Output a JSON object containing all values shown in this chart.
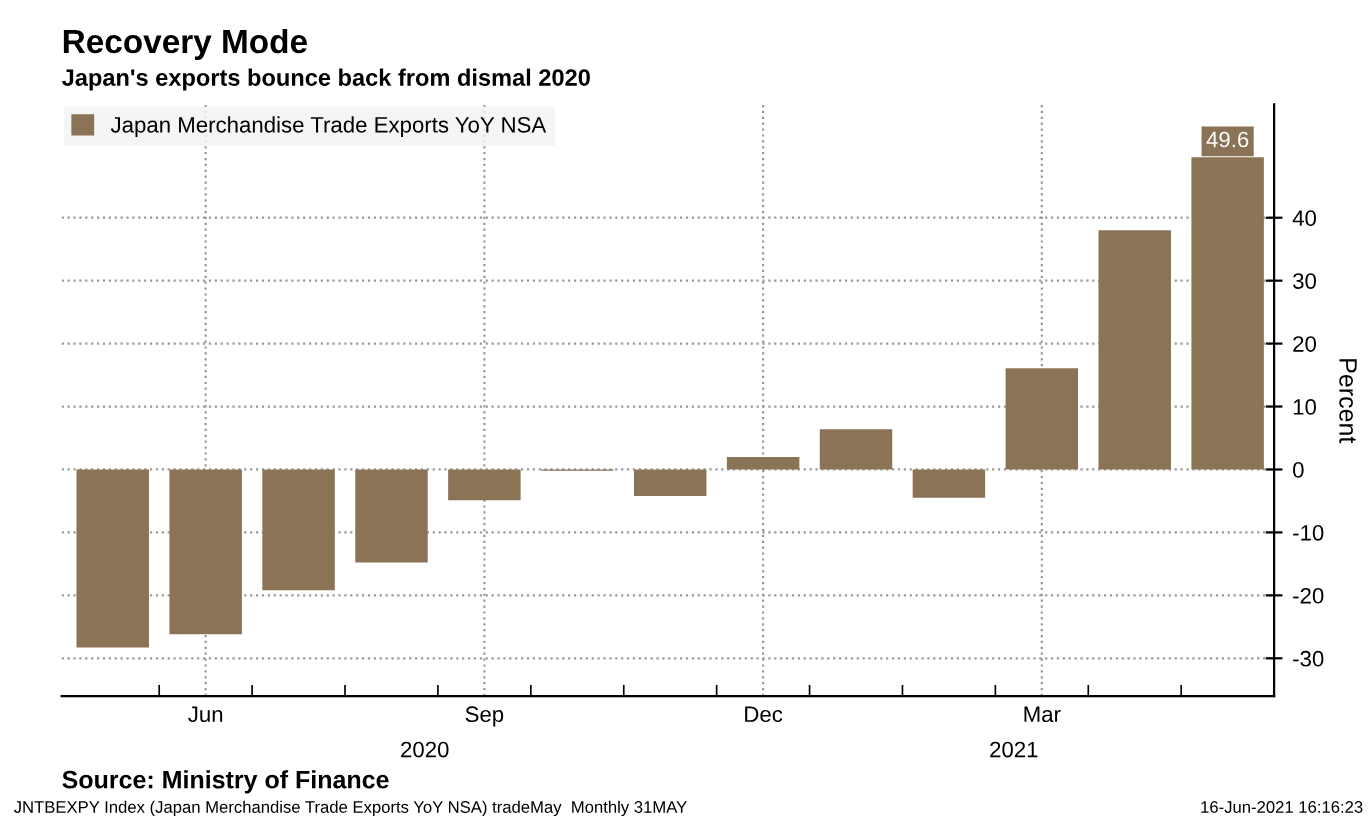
{
  "chart_data": {
    "type": "bar",
    "title": "Recovery Mode",
    "subtitle": "Japan's exports bounce back from dismal 2020",
    "ylabel": "Percent",
    "categories": [
      null,
      "Jun",
      null,
      null,
      "Sep",
      null,
      null,
      "Dec",
      null,
      null,
      "Mar",
      null,
      null
    ],
    "series": [
      {
        "name": "Japan Merchandise Trade Exports YoY NSA",
        "color": "#8b7355",
        "values": [
          -28.3,
          -26.2,
          -19.2,
          -14.8,
          -4.9,
          -0.2,
          -4.2,
          2.0,
          6.4,
          -4.5,
          16.1,
          38.0,
          49.6
        ],
        "value_labels": [
          null,
          null,
          null,
          null,
          null,
          null,
          null,
          null,
          null,
          null,
          null,
          null,
          "49.6"
        ]
      }
    ],
    "ylim": [
      -36,
      58
    ],
    "yticks": [
      -30,
      -20,
      -10,
      0,
      10,
      20,
      30,
      40
    ],
    "grid": true,
    "legend": "top left",
    "annotations": [
      "2020",
      "2021",
      "Source: Ministry of Finance",
      "JNTBEXPY Index (Japan Merchandise Trade Exports YoY NSA) tradeMay  Monthly 31MAY",
      "16-Jun-2021 16:16:23"
    ]
  }
}
